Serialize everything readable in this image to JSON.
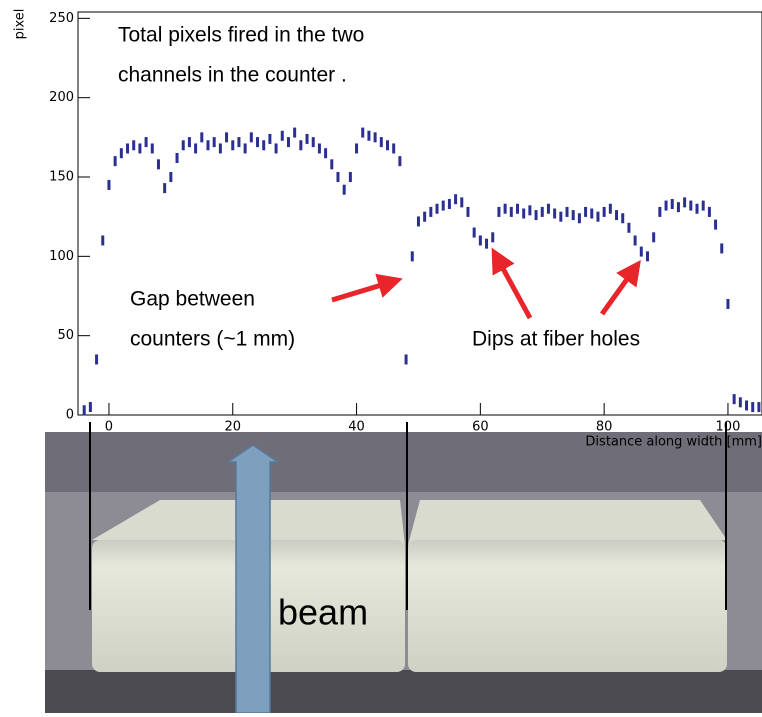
{
  "chart_data": {
    "type": "scatter",
    "title_lines": [
      "Total pixels fired in the two",
      "channels in the counter ."
    ],
    "ylabel": "pixel",
    "xlabel": "Distance along width [mm]",
    "annotations": [
      {
        "lines": [
          "Gap between",
          "counters (~1 mm)"
        ]
      },
      {
        "lines": [
          "Dips at fiber holes"
        ]
      }
    ],
    "photo_label": "beam",
    "color": "#2b2f8f",
    "xlim": [
      -5,
      105.5
    ],
    "ylim": [
      0,
      254
    ],
    "xticks": [
      0,
      20,
      40,
      60,
      80,
      100
    ],
    "yticks": [
      0,
      50,
      100,
      150,
      200,
      250
    ],
    "x": [
      -4,
      -3,
      -2,
      -1,
      0,
      1,
      2,
      3,
      4,
      5,
      6,
      7,
      8,
      9,
      10,
      11,
      12,
      13,
      14,
      15,
      16,
      17,
      18,
      19,
      20,
      21,
      22,
      23,
      24,
      25,
      26,
      27,
      28,
      29,
      30,
      31,
      32,
      33,
      34,
      35,
      36,
      37,
      38,
      39,
      40,
      41,
      42,
      43,
      44,
      45,
      46,
      47,
      48,
      49,
      50,
      51,
      52,
      53,
      54,
      55,
      56,
      57,
      58,
      59,
      60,
      61,
      62,
      63,
      64,
      65,
      66,
      67,
      68,
      69,
      70,
      71,
      72,
      73,
      74,
      75,
      76,
      77,
      78,
      79,
      80,
      81,
      82,
      83,
      84,
      85,
      86,
      87,
      88,
      89,
      90,
      91,
      92,
      93,
      94,
      95,
      96,
      97,
      98,
      99,
      100,
      101,
      102,
      103,
      104,
      105
    ],
    "values": [
      3,
      5,
      35,
      110,
      145,
      160,
      165,
      168,
      170,
      168,
      172,
      168,
      158,
      143,
      150,
      162,
      170,
      172,
      168,
      175,
      170,
      172,
      168,
      175,
      170,
      172,
      168,
      175,
      172,
      170,
      174,
      168,
      176,
      172,
      178,
      170,
      174,
      172,
      168,
      165,
      158,
      150,
      142,
      150,
      168,
      178,
      176,
      175,
      172,
      170,
      168,
      160,
      35,
      100,
      122,
      125,
      128,
      130,
      132,
      133,
      136,
      134,
      128,
      115,
      110,
      108,
      112,
      128,
      130,
      128,
      130,
      127,
      129,
      126,
      128,
      130,
      127,
      125,
      128,
      126,
      124,
      128,
      127,
      125,
      128,
      130,
      126,
      124,
      118,
      110,
      103,
      100,
      112,
      128,
      132,
      133,
      131,
      134,
      132,
      130,
      132,
      128,
      120,
      105,
      70,
      10,
      8,
      6,
      5,
      5
    ]
  }
}
